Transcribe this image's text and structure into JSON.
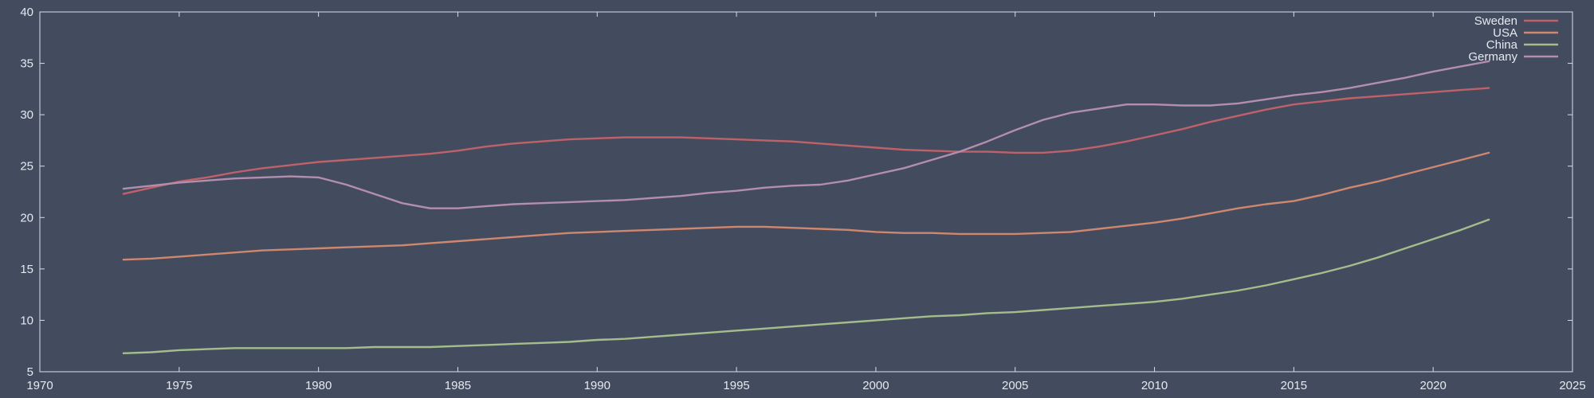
{
  "chart_data": {
    "type": "line",
    "title": "",
    "xlabel": "",
    "ylabel": "",
    "xlim": [
      1970,
      2025
    ],
    "ylim": [
      5,
      40
    ],
    "xticks": [
      1970,
      1975,
      1980,
      1985,
      1990,
      1995,
      2000,
      2005,
      2010,
      2015,
      2020,
      2025
    ],
    "yticks": [
      5,
      10,
      15,
      20,
      25,
      30,
      35,
      40
    ],
    "grid": false,
    "legend_position": "top-right",
    "x": [
      1973,
      1974,
      1975,
      1976,
      1977,
      1978,
      1979,
      1980,
      1981,
      1982,
      1983,
      1984,
      1985,
      1986,
      1987,
      1988,
      1989,
      1990,
      1991,
      1992,
      1993,
      1994,
      1995,
      1996,
      1997,
      1998,
      1999,
      2000,
      2001,
      2002,
      2003,
      2004,
      2005,
      2006,
      2007,
      2008,
      2009,
      2010,
      2011,
      2012,
      2013,
      2014,
      2015,
      2016,
      2017,
      2018,
      2019,
      2020,
      2021,
      2022
    ],
    "series": [
      {
        "name": "Sweden",
        "color": "#bf616a",
        "values": [
          22.3,
          22.9,
          23.5,
          23.9,
          24.4,
          24.8,
          25.1,
          25.4,
          25.6,
          25.8,
          26.0,
          26.2,
          26.5,
          26.9,
          27.2,
          27.4,
          27.6,
          27.7,
          27.8,
          27.8,
          27.8,
          27.7,
          27.6,
          27.5,
          27.4,
          27.2,
          27.0,
          26.8,
          26.6,
          26.5,
          26.4,
          26.4,
          26.3,
          26.3,
          26.5,
          26.9,
          27.4,
          28.0,
          28.6,
          29.3,
          29.9,
          30.5,
          31.0,
          31.3,
          31.6,
          31.8,
          32.0,
          32.2,
          32.4,
          32.6
        ]
      },
      {
        "name": "USA",
        "color": "#d08770",
        "values": [
          15.9,
          16.0,
          16.2,
          16.4,
          16.6,
          16.8,
          16.9,
          17.0,
          17.1,
          17.2,
          17.3,
          17.5,
          17.7,
          17.9,
          18.1,
          18.3,
          18.5,
          18.6,
          18.7,
          18.8,
          18.9,
          19.0,
          19.1,
          19.1,
          19.0,
          18.9,
          18.8,
          18.6,
          18.5,
          18.5,
          18.4,
          18.4,
          18.4,
          18.5,
          18.6,
          18.9,
          19.2,
          19.5,
          19.9,
          20.4,
          20.9,
          21.3,
          21.6,
          22.2,
          22.9,
          23.5,
          24.2,
          24.9,
          25.6,
          26.3
        ]
      },
      {
        "name": "China",
        "color": "#a3be8c",
        "values": [
          6.8,
          6.9,
          7.1,
          7.2,
          7.3,
          7.3,
          7.3,
          7.3,
          7.3,
          7.4,
          7.4,
          7.4,
          7.5,
          7.6,
          7.7,
          7.8,
          7.9,
          8.1,
          8.2,
          8.4,
          8.6,
          8.8,
          9.0,
          9.2,
          9.4,
          9.6,
          9.8,
          10.0,
          10.2,
          10.4,
          10.5,
          10.7,
          10.8,
          11.0,
          11.2,
          11.4,
          11.6,
          11.8,
          12.1,
          12.5,
          12.9,
          13.4,
          14.0,
          14.6,
          15.3,
          16.1,
          17.0,
          17.9,
          18.8,
          19.8
        ]
      },
      {
        "name": "Germany",
        "color": "#b48ead",
        "values": [
          22.8,
          23.1,
          23.4,
          23.6,
          23.8,
          23.9,
          24.0,
          23.9,
          23.2,
          22.3,
          21.4,
          20.9,
          20.9,
          21.1,
          21.3,
          21.4,
          21.5,
          21.6,
          21.7,
          21.9,
          22.1,
          22.4,
          22.6,
          22.9,
          23.1,
          23.2,
          23.6,
          24.2,
          24.8,
          25.6,
          26.4,
          27.4,
          28.5,
          29.5,
          30.2,
          30.6,
          31.0,
          31.0,
          30.9,
          30.9,
          31.1,
          31.5,
          31.9,
          32.2,
          32.6,
          33.1,
          33.6,
          34.2,
          34.7,
          35.2
        ]
      }
    ]
  }
}
